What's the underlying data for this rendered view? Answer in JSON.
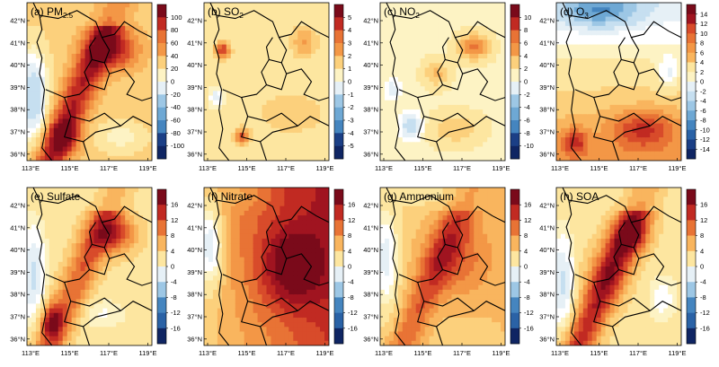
{
  "panels": [
    {
      "id": "a",
      "label": "(a) ",
      "species": "PM",
      "sub": "2.5",
      "cbar_ticks": [
        "100",
        "80",
        "60",
        "40",
        "20",
        "0",
        "-20",
        "-40",
        "-60",
        "-80",
        "-100"
      ],
      "pattern": "pm"
    },
    {
      "id": "b",
      "label": "(b) ",
      "species": "SO",
      "sub": "2",
      "cbar_ticks": [
        "5",
        "4",
        "3",
        "2",
        "1",
        "0",
        "-1",
        "-2",
        "-3",
        "-4",
        "-5"
      ],
      "pattern": "so2"
    },
    {
      "id": "c",
      "label": "(c) ",
      "species": "NO",
      "sub": "2",
      "cbar_ticks": [
        "10",
        "8",
        "6",
        "4",
        "2",
        "0",
        "-2",
        "-4",
        "-6",
        "-8",
        "-10"
      ],
      "pattern": "no2"
    },
    {
      "id": "d",
      "label": "(d) ",
      "species": "O",
      "sub": "3",
      "cbar_ticks": [
        "14",
        "12",
        "10",
        "8",
        "6",
        "4",
        "2",
        "0",
        "-2",
        "-4",
        "-6",
        "-8",
        "-10",
        "-12",
        "-14"
      ],
      "pattern": "o3"
    },
    {
      "id": "e",
      "label": "(e) ",
      "species": "Sulfate",
      "sub": "",
      "cbar_ticks": [
        "16",
        "12",
        "8",
        "4",
        "0",
        "-4",
        "-8",
        "-12",
        "-16"
      ],
      "pattern": "sulfate"
    },
    {
      "id": "f",
      "label": "(f) ",
      "species": "Nitrate",
      "sub": "",
      "cbar_ticks": [
        "16",
        "12",
        "8",
        "4",
        "0",
        "-4",
        "-8",
        "-12",
        "-16"
      ],
      "pattern": "nitrate"
    },
    {
      "id": "g",
      "label": "(g) ",
      "species": "Ammonium",
      "sub": "",
      "cbar_ticks": [
        "16",
        "12",
        "8",
        "4",
        "0",
        "-4",
        "-8",
        "-12",
        "-16"
      ],
      "pattern": "ammonium"
    },
    {
      "id": "h",
      "label": "(h) ",
      "species": "SOA",
      "sub": "",
      "cbar_ticks": [
        "16",
        "12",
        "8",
        "4",
        "0",
        "-4",
        "-8",
        "-12",
        "-16"
      ],
      "pattern": "soa"
    }
  ],
  "lat_ticks": [
    "42°N",
    "41°N",
    "40°N",
    "39°N",
    "38°N",
    "37°N",
    "36°N"
  ],
  "lon_ticks": [
    "113°E",
    "115°E",
    "117°E",
    "119°E"
  ],
  "colors": {
    "positive": [
      "#fdf3c4",
      "#fde6a0",
      "#fcd07c",
      "#f9b55e",
      "#f39746",
      "#e87335",
      "#d84b2a",
      "#c12a22",
      "#a01420",
      "#7a0a1a"
    ],
    "negative": [
      "#e6f0f6",
      "#c6dff0",
      "#9dc7e5",
      "#6ea8d4",
      "#4585bf",
      "#2a62a6",
      "#1b3f86",
      "#0f2563"
    ],
    "zero": "#ffffff"
  }
}
